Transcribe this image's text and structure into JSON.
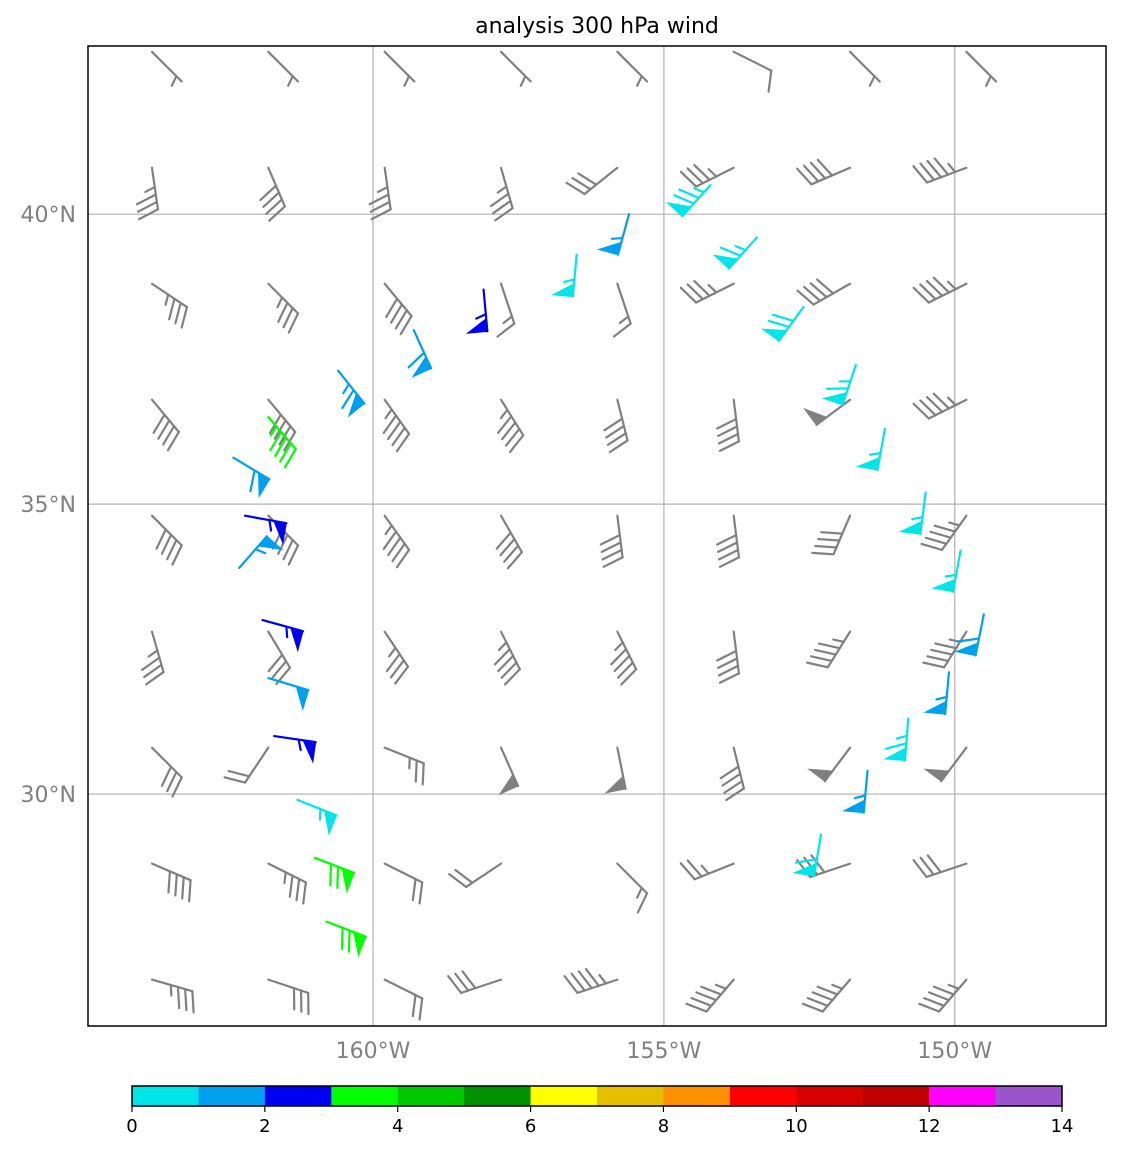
{
  "chart_data": {
    "type": "wind_barb_map",
    "title": "analysis 300 hPa wind",
    "xaxis": {
      "ticks": [
        -160,
        -155,
        -150
      ],
      "tick_labels": [
        "160°W",
        "155°W",
        "150°W"
      ],
      "range": [
        -164.9,
        -147.4
      ]
    },
    "yaxis": {
      "ticks": [
        30,
        35,
        40
      ],
      "tick_labels": [
        "30°N",
        "35°N",
        "40°N"
      ],
      "range": [
        26.0,
        42.9
      ]
    },
    "grid": true,
    "colorbar": {
      "orientation": "horizontal",
      "placement": "bottom",
      "range": [
        0,
        14
      ],
      "tick_values": [
        0,
        2,
        4,
        6,
        8,
        10,
        12,
        14
      ],
      "tick_labels": [
        "0",
        "2",
        "4",
        "6",
        "8",
        "10",
        "12",
        "14"
      ],
      "colors": [
        "#00e5e8",
        "#00a0f0",
        "#0000f0",
        "#00ff00",
        "#00c800",
        "#009000",
        "#ffff00",
        "#e6be00",
        "#ff9000",
        "#ff0000",
        "#d60000",
        "#c00000",
        "#ff00ff",
        "#9955c9"
      ]
    },
    "gray_color": "#808080",
    "grid_color": "#b0b0b0",
    "background_barbs": {
      "lons": [
        -163.8,
        -161.8,
        -159.8,
        -157.8,
        -155.8,
        -153.8,
        -151.8,
        -149.8
      ],
      "lats": [
        42.8,
        40.8,
        38.8,
        36.8,
        34.8,
        32.8,
        30.8,
        28.8,
        26.8
      ],
      "u": [
        [
          -5,
          -5,
          -5,
          -5,
          -5,
          -10,
          -5,
          -5
        ],
        [
          -5,
          -15,
          -5,
          -10,
          25,
          30,
          35,
          40
        ],
        [
          -30,
          -25,
          -25,
          -5,
          -5,
          30,
          35,
          40
        ],
        [
          -25,
          -25,
          -25,
          -25,
          -10,
          -5,
          40,
          40
        ],
        [
          -30,
          -30,
          -25,
          -20,
          -5,
          -5,
          15,
          25
        ],
        [
          -10,
          -15,
          -20,
          -20,
          -20,
          -5,
          25,
          25
        ],
        [
          -20,
          10,
          -25,
          -20,
          -10,
          -10,
          30,
          30
        ],
        [
          -35,
          -30,
          -20,
          15,
          -10,
          25,
          30,
          30
        ],
        [
          -35,
          -30,
          -20,
          30,
          45,
          30,
          30,
          30
        ]
      ],
      "v": [
        [
          5,
          5,
          5,
          5,
          5,
          5,
          5,
          5
        ],
        [
          35,
          35,
          35,
          35,
          20,
          15,
          15,
          15
        ],
        [
          20,
          25,
          30,
          15,
          15,
          15,
          20,
          20
        ],
        [
          30,
          30,
          35,
          40,
          40,
          40,
          30,
          20
        ],
        [
          30,
          30,
          35,
          35,
          40,
          40,
          35,
          35
        ],
        [
          35,
          25,
          30,
          40,
          40,
          40,
          40,
          40
        ],
        [
          20,
          15,
          10,
          45,
          50,
          40,
          40,
          40
        ],
        [
          15,
          15,
          10,
          10,
          10,
          10,
          10,
          10
        ],
        [
          10,
          10,
          10,
          10,
          15,
          35,
          35,
          35
        ]
      ]
    },
    "colored_barbs": [
      {
        "lon": -155.6,
        "lat": 40.0,
        "u": 15,
        "v": 55,
        "value": 1.5
      },
      {
        "lon": -154.2,
        "lat": 40.5,
        "u": 50,
        "v": 55,
        "value": 0.5
      },
      {
        "lon": -153.4,
        "lat": 39.6,
        "u": 45,
        "v": 50,
        "value": 0.5
      },
      {
        "lon": -152.6,
        "lat": 38.4,
        "u": 40,
        "v": 55,
        "value": 0.5
      },
      {
        "lon": -151.7,
        "lat": 37.4,
        "u": 20,
        "v": 60,
        "value": 0.5
      },
      {
        "lon": -151.2,
        "lat": 36.3,
        "u": 10,
        "v": 55,
        "value": 0.5
      },
      {
        "lon": -150.5,
        "lat": 35.2,
        "u": 7,
        "v": 55,
        "value": 0.5
      },
      {
        "lon": -149.9,
        "lat": 34.2,
        "u": 10,
        "v": 55,
        "value": 0.5
      },
      {
        "lon": -149.5,
        "lat": 33.1,
        "u": 12,
        "v": 60,
        "value": 1.5
      },
      {
        "lon": -150.1,
        "lat": 32.1,
        "u": 5,
        "v": 55,
        "value": 1.5
      },
      {
        "lon": -150.8,
        "lat": 31.3,
        "u": 5,
        "v": 65,
        "value": 0.5
      },
      {
        "lon": -151.5,
        "lat": 30.4,
        "u": 5,
        "v": 55,
        "value": 1.5
      },
      {
        "lon": -152.3,
        "lat": 29.3,
        "u": 10,
        "v": 60,
        "value": 0.5
      },
      {
        "lon": -156.5,
        "lat": 39.3,
        "u": 5,
        "v": 55,
        "value": 0.5
      },
      {
        "lon": -158.1,
        "lat": 38.7,
        "u": -5,
        "v": 55,
        "value": 2.5
      },
      {
        "lon": -159.3,
        "lat": 38.0,
        "u": -25,
        "v": 55,
        "value": 1.5
      },
      {
        "lon": -160.6,
        "lat": 37.3,
        "u": -40,
        "v": 50,
        "value": 1.5
      },
      {
        "lon": -161.8,
        "lat": 36.5,
        "u": -30,
        "v": 35,
        "value": 3.5
      },
      {
        "lon": -162.4,
        "lat": 35.8,
        "u": -50,
        "v": 30,
        "value": 1.5
      },
      {
        "lon": -162.2,
        "lat": 34.8,
        "u": -55,
        "v": 10,
        "value": 2.5
      },
      {
        "lon": -162.3,
        "lat": 33.9,
        "u": -35,
        "v": -40,
        "value": 1.5
      },
      {
        "lon": -161.9,
        "lat": 33.0,
        "u": -55,
        "v": 15,
        "value": 2.5
      },
      {
        "lon": -161.8,
        "lat": 32.0,
        "u": -50,
        "v": 15,
        "value": 1.5
      },
      {
        "lon": -161.7,
        "lat": 31.0,
        "u": -55,
        "v": 8,
        "value": 2.5
      },
      {
        "lon": -161.3,
        "lat": 29.9,
        "u": -50,
        "v": 20,
        "value": 0.5
      },
      {
        "lon": -161.0,
        "lat": 28.9,
        "u": -65,
        "v": 25,
        "value": 3.5
      },
      {
        "lon": -160.8,
        "lat": 27.8,
        "u": -65,
        "v": 25,
        "value": 3.5
      }
    ]
  }
}
